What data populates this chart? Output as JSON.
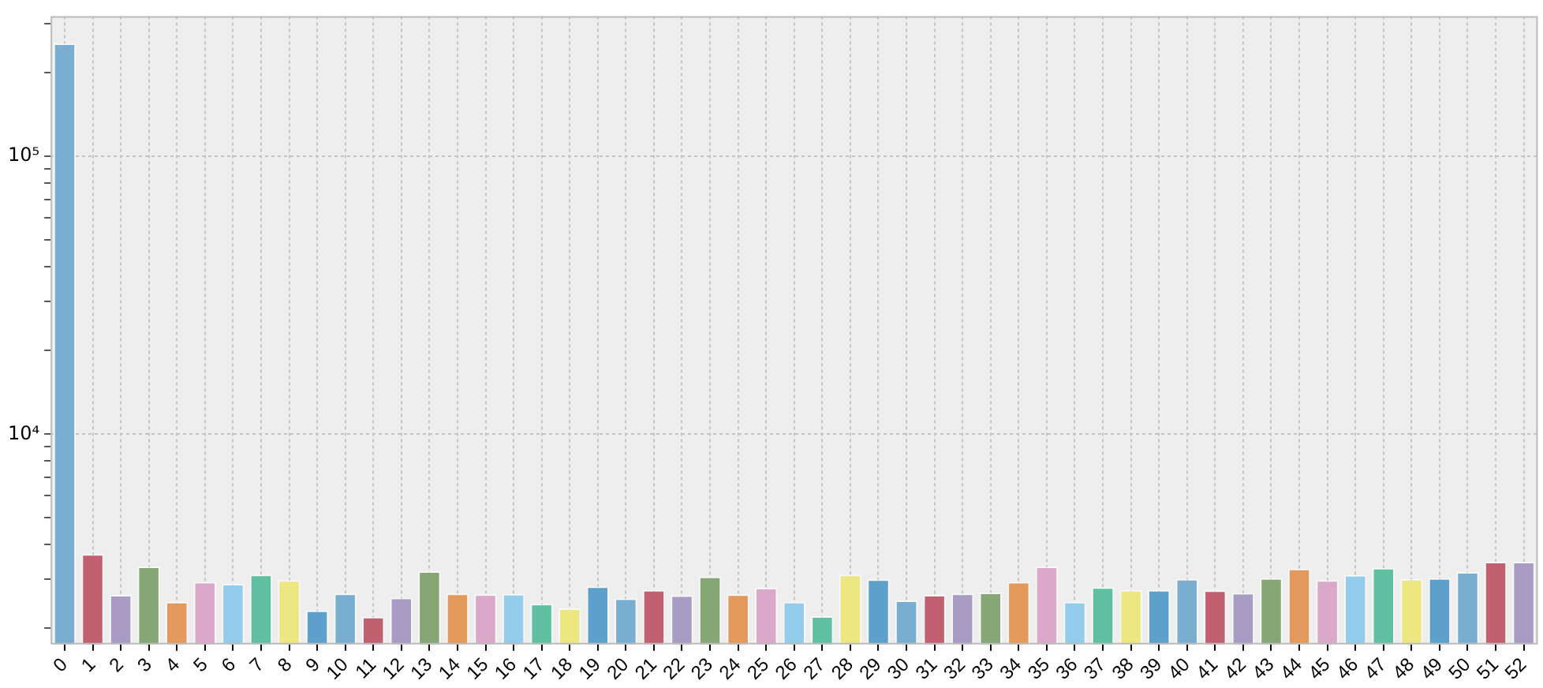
{
  "chart_data": {
    "type": "bar",
    "log": "y",
    "grid": true,
    "legend": false,
    "categories": [
      "0",
      "1",
      "2",
      "3",
      "4",
      "5",
      "6",
      "7",
      "8",
      "9",
      "10",
      "11",
      "12",
      "13",
      "14",
      "15",
      "16",
      "17",
      "18",
      "19",
      "20",
      "21",
      "22",
      "23",
      "24",
      "25",
      "26",
      "27",
      "28",
      "29",
      "30",
      "31",
      "32",
      "33",
      "34",
      "35",
      "36",
      "37",
      "38",
      "39",
      "40",
      "41",
      "42",
      "43",
      "44",
      "45",
      "46",
      "47",
      "48",
      "49",
      "50",
      "51",
      "52"
    ],
    "values": [
      255000,
      3700,
      2640,
      3340,
      2490,
      2940,
      2890,
      3120,
      2980,
      2320,
      2670,
      2200,
      2580,
      3210,
      2670,
      2650,
      2660,
      2450,
      2360,
      2830,
      2560,
      2750,
      2630,
      3070,
      2650,
      2800,
      2490,
      2210,
      3120,
      3000,
      2520,
      2640,
      2670,
      2690,
      2940,
      3340,
      2490,
      2810,
      2750,
      2750,
      3010,
      2740,
      2680,
      3030,
      3280,
      2980,
      3110,
      3300,
      3010,
      3030,
      3190,
      3470,
      3470
    ],
    "colors": [
      "#7aaed1",
      "#c25f70",
      "#a89cc5",
      "#87a676",
      "#e3985c",
      "#daa8c8",
      "#94cdec",
      "#5fbfa1",
      "#ede782",
      "#5da0cb",
      "#7aaed1",
      "#c25f70",
      "#a89cc5",
      "#87a676",
      "#e3985c",
      "#daa8c8",
      "#94cdec",
      "#5fbfa1",
      "#ede782",
      "#5da0cb",
      "#7aaed1",
      "#c25f70",
      "#a89cc5",
      "#87a676",
      "#e3985c",
      "#daa8c8",
      "#94cdec",
      "#5fbfa1",
      "#ede782",
      "#5da0cb",
      "#7aaed1",
      "#c25f70",
      "#a89cc5",
      "#87a676",
      "#e3985c",
      "#daa8c8",
      "#94cdec",
      "#5fbfa1",
      "#ede782",
      "#5da0cb",
      "#7aaed1",
      "#c25f70",
      "#a89cc5",
      "#87a676",
      "#e3985c",
      "#daa8c8",
      "#94cdec",
      "#5fbfa1",
      "#ede782",
      "#5da0cb",
      "#7aaed1",
      "#c25f70",
      "#a89cc5"
    ],
    "ylim": [
      1750,
      320000
    ],
    "yticks": [
      {
        "value": 2000,
        "label": null
      },
      {
        "value": 3000,
        "label": null
      },
      {
        "value": 4000,
        "label": null
      },
      {
        "value": 5000,
        "label": null
      },
      {
        "value": 6000,
        "label": null
      },
      {
        "value": 7000,
        "label": null
      },
      {
        "value": 8000,
        "label": null
      },
      {
        "value": 9000,
        "label": null
      },
      {
        "value": 10000,
        "label": "10⁴"
      },
      {
        "value": 20000,
        "label": null
      },
      {
        "value": 30000,
        "label": null
      },
      {
        "value": 40000,
        "label": null
      },
      {
        "value": 50000,
        "label": null
      },
      {
        "value": 60000,
        "label": null
      },
      {
        "value": 70000,
        "label": null
      },
      {
        "value": 80000,
        "label": null
      },
      {
        "value": 90000,
        "label": null
      },
      {
        "value": 100000,
        "label": "10⁵"
      },
      {
        "value": 200000,
        "label": null
      },
      {
        "value": 300000,
        "label": null
      }
    ]
  }
}
